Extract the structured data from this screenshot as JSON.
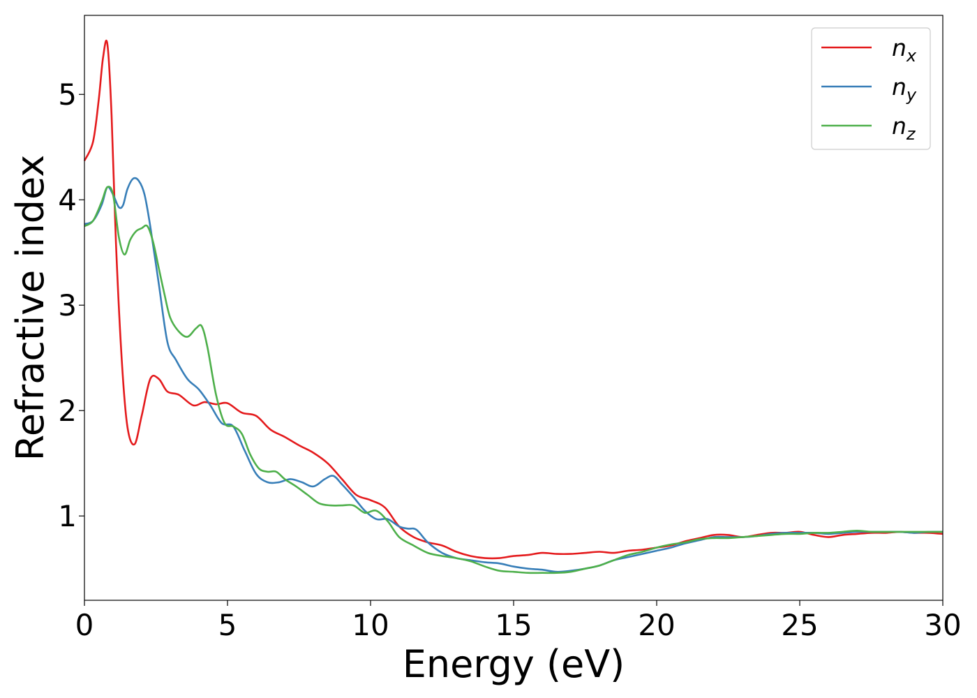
{
  "chart_data": {
    "type": "line",
    "xlabel": "Energy (eV)",
    "ylabel": "Refractive index",
    "xlim": [
      0,
      30
    ],
    "ylim": [
      0.2,
      5.75
    ],
    "xticks": [
      0,
      5,
      10,
      15,
      20,
      25,
      30
    ],
    "yticks": [
      1,
      2,
      3,
      4,
      5
    ],
    "grid": false,
    "legend_position": "top-right",
    "series": [
      {
        "name": "n",
        "subscript": "x",
        "color": "#e41a1c",
        "x": [
          0,
          0.3,
          0.5,
          0.65,
          0.8,
          0.95,
          1.1,
          1.3,
          1.5,
          1.75,
          2.0,
          2.3,
          2.6,
          2.9,
          3.3,
          3.8,
          4.2,
          4.6,
          5.0,
          5.5,
          6.0,
          6.5,
          7.0,
          7.5,
          8.0,
          8.5,
          9.0,
          9.5,
          10.0,
          10.5,
          11.0,
          11.5,
          12.0,
          12.5,
          13.0,
          13.5,
          14.0,
          14.5,
          15.0,
          15.5,
          16.0,
          16.5,
          17.0,
          17.5,
          18.0,
          18.5,
          19.0,
          19.5,
          20.0,
          20.5,
          21.0,
          21.5,
          22.0,
          22.5,
          23.0,
          23.5,
          24.0,
          24.5,
          25.0,
          25.5,
          26.0,
          26.5,
          27.0,
          27.5,
          28.0,
          28.5,
          29.0,
          29.5,
          30.0
        ],
        "y": [
          4.37,
          4.55,
          4.95,
          5.35,
          5.48,
          4.8,
          3.6,
          2.5,
          1.85,
          1.68,
          1.95,
          2.3,
          2.3,
          2.18,
          2.15,
          2.05,
          2.08,
          2.06,
          2.07,
          1.98,
          1.95,
          1.82,
          1.75,
          1.67,
          1.6,
          1.5,
          1.35,
          1.2,
          1.15,
          1.08,
          0.9,
          0.8,
          0.75,
          0.72,
          0.66,
          0.62,
          0.6,
          0.6,
          0.62,
          0.63,
          0.65,
          0.64,
          0.64,
          0.65,
          0.66,
          0.65,
          0.67,
          0.68,
          0.7,
          0.72,
          0.76,
          0.79,
          0.82,
          0.82,
          0.8,
          0.82,
          0.84,
          0.84,
          0.85,
          0.82,
          0.8,
          0.82,
          0.83,
          0.84,
          0.84,
          0.85,
          0.84,
          0.84,
          0.83
        ]
      },
      {
        "name": "n",
        "subscript": "y",
        "color": "#377eb8",
        "x": [
          0,
          0.3,
          0.6,
          0.8,
          1.0,
          1.2,
          1.35,
          1.5,
          1.7,
          1.9,
          2.1,
          2.3,
          2.6,
          2.9,
          3.2,
          3.6,
          4.0,
          4.4,
          4.8,
          5.2,
          5.6,
          6.0,
          6.4,
          6.8,
          7.2,
          7.6,
          8.0,
          8.4,
          8.7,
          9.0,
          9.4,
          9.8,
          10.2,
          10.6,
          11.0,
          11.3,
          11.6,
          12.0,
          12.5,
          13.0,
          13.5,
          14.0,
          14.5,
          15.0,
          15.5,
          16.0,
          16.5,
          17.0,
          17.5,
          18.0,
          18.5,
          19.0,
          19.5,
          20.0,
          20.5,
          21.0,
          21.5,
          22.0,
          22.5,
          23.0,
          23.5,
          24.0,
          24.5,
          25.0,
          25.5,
          26.0,
          26.5,
          27.0,
          27.5,
          28.0,
          28.5,
          29.0,
          29.5,
          30.0
        ],
        "y": [
          3.77,
          3.8,
          3.95,
          4.12,
          4.05,
          3.93,
          3.95,
          4.1,
          4.2,
          4.18,
          4.05,
          3.75,
          3.2,
          2.65,
          2.48,
          2.3,
          2.2,
          2.05,
          1.88,
          1.85,
          1.62,
          1.4,
          1.32,
          1.32,
          1.35,
          1.32,
          1.28,
          1.35,
          1.38,
          1.3,
          1.18,
          1.05,
          0.97,
          0.97,
          0.9,
          0.88,
          0.87,
          0.75,
          0.65,
          0.6,
          0.58,
          0.56,
          0.55,
          0.52,
          0.5,
          0.49,
          0.47,
          0.48,
          0.5,
          0.53,
          0.58,
          0.61,
          0.64,
          0.67,
          0.7,
          0.74,
          0.77,
          0.8,
          0.8,
          0.8,
          0.81,
          0.83,
          0.84,
          0.84,
          0.84,
          0.83,
          0.84,
          0.85,
          0.85,
          0.85,
          0.85,
          0.84,
          0.85,
          0.85
        ]
      },
      {
        "name": "n",
        "subscript": "z",
        "color": "#4daf4a",
        "x": [
          0,
          0.3,
          0.6,
          0.8,
          1.0,
          1.2,
          1.4,
          1.6,
          1.8,
          2.0,
          2.2,
          2.4,
          2.6,
          2.8,
          3.0,
          3.3,
          3.6,
          3.9,
          4.1,
          4.3,
          4.6,
          4.9,
          5.2,
          5.5,
          5.8,
          6.1,
          6.4,
          6.7,
          7.0,
          7.4,
          7.8,
          8.2,
          8.6,
          9.0,
          9.4,
          9.8,
          10.2,
          10.6,
          11.0,
          11.5,
          12.0,
          12.5,
          13.0,
          13.5,
          14.0,
          14.5,
          15.0,
          15.5,
          16.0,
          16.5,
          17.0,
          17.5,
          18.0,
          18.5,
          19.0,
          19.5,
          20.0,
          20.5,
          21.0,
          21.5,
          22.0,
          22.5,
          23.0,
          23.5,
          24.0,
          24.5,
          25.0,
          25.5,
          26.0,
          26.5,
          27.0,
          27.5,
          28.0,
          28.5,
          29.0,
          29.5,
          30.0
        ],
        "y": [
          3.75,
          3.8,
          3.98,
          4.12,
          4.05,
          3.65,
          3.48,
          3.62,
          3.7,
          3.73,
          3.75,
          3.6,
          3.35,
          3.1,
          2.88,
          2.75,
          2.7,
          2.78,
          2.8,
          2.6,
          2.15,
          1.88,
          1.85,
          1.78,
          1.58,
          1.45,
          1.42,
          1.42,
          1.35,
          1.28,
          1.2,
          1.12,
          1.1,
          1.1,
          1.1,
          1.03,
          1.05,
          0.95,
          0.8,
          0.72,
          0.65,
          0.62,
          0.6,
          0.57,
          0.52,
          0.48,
          0.47,
          0.46,
          0.46,
          0.46,
          0.47,
          0.5,
          0.53,
          0.58,
          0.63,
          0.66,
          0.7,
          0.73,
          0.75,
          0.78,
          0.79,
          0.79,
          0.8,
          0.81,
          0.82,
          0.83,
          0.83,
          0.84,
          0.84,
          0.85,
          0.86,
          0.85,
          0.85,
          0.85,
          0.85,
          0.85,
          0.85
        ]
      }
    ]
  }
}
